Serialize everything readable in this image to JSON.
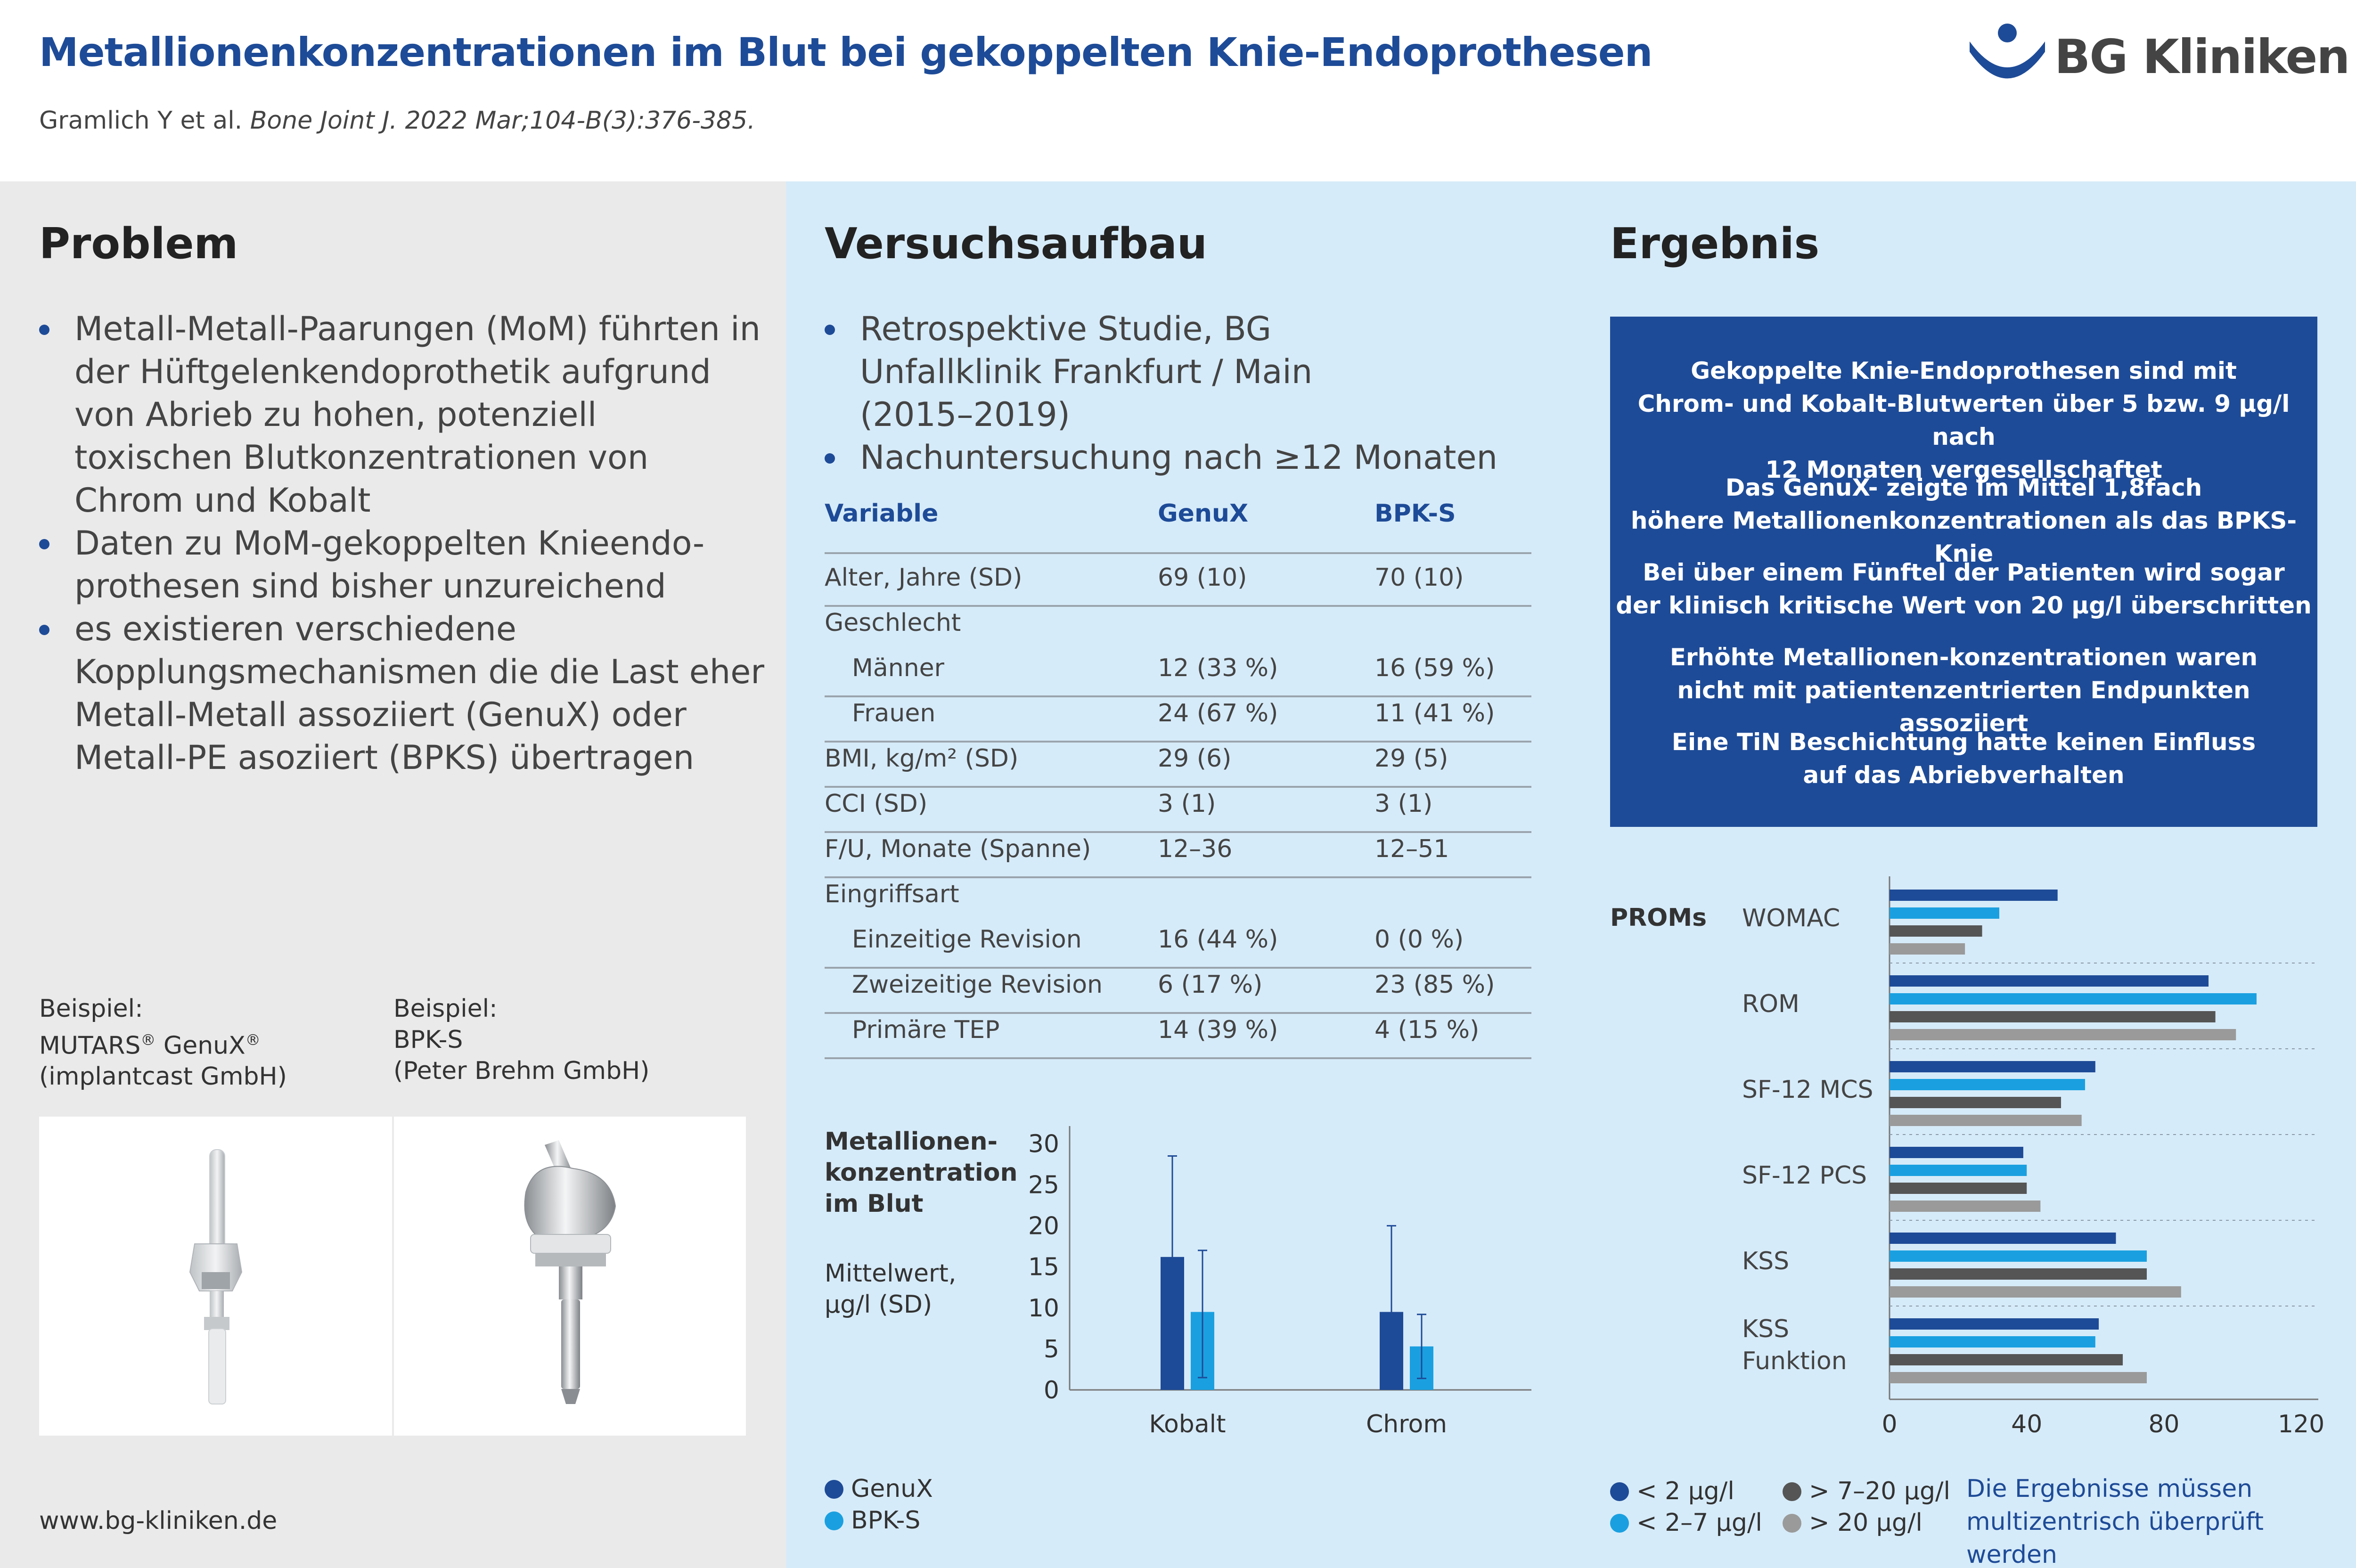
{
  "header": {
    "title": "Metallionenkonzentrationen im Blut bei gekoppelten Knie-Endoprothesen",
    "citation_authors": "Gramlich Y et al.",
    "citation_journal": "Bone Joint J. 2022 Mar;104-B(3):376-385.",
    "logo_text": "BG Kliniken"
  },
  "colors": {
    "primary": "#1e4b97",
    "light_blue": "#1aa0e0",
    "dark_grey": "#555555",
    "light_grey": "#9a9a9a",
    "panel_grey": "#eaeaea",
    "panel_blue": "#d6ebf9"
  },
  "problem": {
    "heading": "Problem",
    "bullets": [
      "Metall-Metall-Paarungen (MoM) führten in der Hüftgelenkendoprothetik aufgrund von Abrieb zu hohen, potenziell toxischen Blutkonzentrationen von Chrom und Kobalt",
      "Daten zu MoM-gekoppelten Knieendo-prothesen sind bisher unzureichend",
      "es existieren verschiedene Kopplungsmechanismen die die Last eher Metall-Metall assoziiert (GenuX) oder Metall-PE asoziiert (BPKS) übertragen"
    ],
    "example1": {
      "label": "Beispiel:",
      "name": "MUTARS",
      "name2": "GenuX",
      "sup": "®",
      "company": "(implantcast GmbH)"
    },
    "example2": {
      "label": "Beispiel:",
      "name": "BPK-S",
      "company": "(Peter Brehm GmbH)"
    },
    "website": "www.bg-kliniken.de"
  },
  "setup": {
    "heading": "Versuchsaufbau",
    "bullets": [
      "Retrospektive Studie, BG Unfallklinik Frankfurt / Main (2015–2019)",
      "Nachuntersuchung nach ≥12 Monaten"
    ],
    "table": {
      "headers": [
        "Variable",
        "GenuX",
        "BPK-S"
      ],
      "rows": [
        {
          "label": "Alter, Jahre (SD)",
          "genux": "69 (10)",
          "bpks": "70 (10)",
          "indent": false,
          "line_after": true
        },
        {
          "label": "Geschlecht",
          "genux": "",
          "bpks": "",
          "indent": false,
          "line_after": false
        },
        {
          "label": "Männer",
          "genux": "12 (33 %)",
          "bpks": "16 (59 %)",
          "indent": true,
          "line_after": true
        },
        {
          "label": "Frauen",
          "genux": "24 (67 %)",
          "bpks": "11 (41 %)",
          "indent": true,
          "line_after": true
        },
        {
          "label": "BMI, kg/m² (SD)",
          "genux": "29 (6)",
          "bpks": "29 (5)",
          "indent": false,
          "line_after": true
        },
        {
          "label": "CCI (SD)",
          "genux": "3 (1)",
          "bpks": "3 (1)",
          "indent": false,
          "line_after": true
        },
        {
          "label": "F/U, Monate (Spanne)",
          "genux": "12–36",
          "bpks": "12–51",
          "indent": false,
          "line_after": true
        },
        {
          "label": "Eingriffsart",
          "genux": "",
          "bpks": "",
          "indent": false,
          "line_after": false
        },
        {
          "label": "Einzeitige Revision",
          "genux": "16 (44 %)",
          "bpks": "0 (0 %)",
          "indent": true,
          "line_after": true
        },
        {
          "label": "Zweizeitige Revision",
          "genux": "6 (17 %)",
          "bpks": "23 (85 %)",
          "indent": true,
          "line_after": true
        },
        {
          "label": "Primäre TEP",
          "genux": "14 (39 %)",
          "bpks": "4 (15 %)",
          "indent": true,
          "line_after": true
        }
      ]
    },
    "metal_chart_title": [
      "Metallionen-",
      "konzentration",
      "im Blut"
    ],
    "metal_chart_subtitle": [
      "Mittelwert,",
      "µg/l (SD)"
    ],
    "metal_legend": [
      "GenuX",
      "BPK-S"
    ]
  },
  "result": {
    "heading": "Ergebnis",
    "paragraphs": [
      [
        "Gekoppelte Knie-Endoprothesen sind mit",
        "Chrom- und Kobalt-Blutwerten über 5 bzw. 9 µg/l nach",
        "12 Monaten vergesellschaftet"
      ],
      [
        "Das GenuX- zeigte im Mittel 1,8fach",
        "höhere Metallionenkonzentrationen als das BPKS-Knie"
      ],
      [
        "Bei über einem Fünftel der Patienten wird sogar",
        "der klinisch kritische Wert von 20 µg/l überschritten"
      ],
      [
        "Erhöhte Metallionen-konzentrationen waren",
        "nicht mit patientenzentrierten Endpunkten assoziiert"
      ],
      [
        "Eine TiN Beschichtung hatte keinen Einfluss",
        "auf das Abriebverhalten"
      ]
    ],
    "proms_label": "PROMs",
    "legend": [
      "< 2 µg/l",
      "< 2–7 µg/l",
      "> 7–20 µg/l",
      "> 20 µg/l"
    ],
    "note": [
      "Die Ergebnisse müssen",
      "multizentrisch überprüft werden"
    ]
  },
  "chart_data": [
    {
      "type": "bar",
      "title": "",
      "categories": [
        "Kobalt",
        "Chrom"
      ],
      "series": [
        {
          "name": "GenuX",
          "values": [
            16.2,
            9.5
          ],
          "sd_upper": [
            28.5,
            20.0
          ],
          "sd_lower": [
            4.0,
            0
          ]
        },
        {
          "name": "BPK-S",
          "values": [
            9.5,
            5.3
          ],
          "sd_upper": [
            17.0,
            9.2
          ],
          "sd_lower": [
            1.5,
            1.4
          ]
        }
      ],
      "yticks": [
        0,
        5,
        10,
        15,
        20,
        25,
        30
      ],
      "ylim": [
        0,
        31
      ]
    },
    {
      "type": "bar",
      "orientation": "horizontal",
      "categories": [
        "WOMAC",
        "ROM",
        "SF-12 MCS",
        "SF-12 PCS",
        "KSS",
        "KSS Funktion"
      ],
      "series": [
        {
          "name": "< 2 µg/l",
          "values": [
            49,
            93,
            60,
            39,
            66,
            61
          ]
        },
        {
          "name": "< 2–7 µg/l",
          "values": [
            32,
            107,
            57,
            40,
            75,
            60
          ]
        },
        {
          "name": "> 7–20 µg/l",
          "values": [
            27,
            95,
            50,
            40,
            75,
            68
          ]
        },
        {
          "name": "> 20 µg/l",
          "values": [
            22,
            101,
            56,
            44,
            85,
            75
          ]
        }
      ],
      "xticks": [
        0,
        40,
        80,
        120
      ],
      "xlim": [
        0,
        125
      ]
    }
  ]
}
